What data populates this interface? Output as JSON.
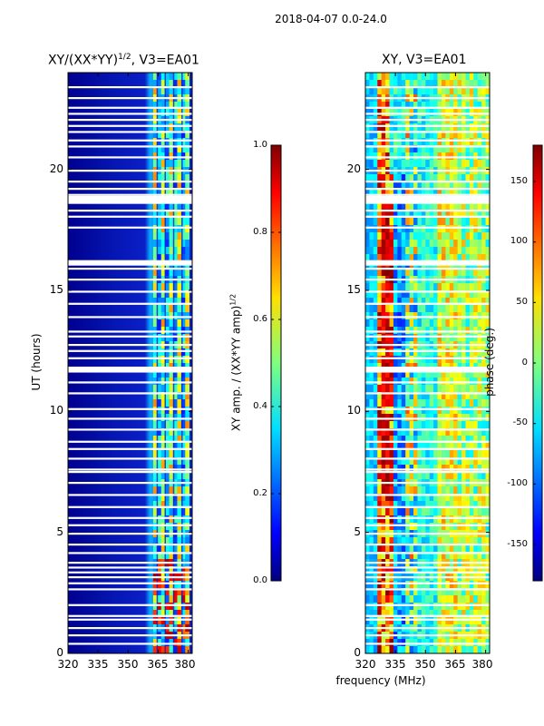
{
  "suptitle": "2018-04-07 0.0-24.0",
  "colors": {
    "bg_dark": "#00008f",
    "bg_blue": "#0a1fc8",
    "gap": "#ffffff",
    "frame": "#000000"
  },
  "chart_data": [
    {
      "type": "heatmap",
      "panel": "left",
      "title_main": "XY/(XX*YY)",
      "title_sup": "1/2",
      "title_tail": ", V3=EA01",
      "xlabel": "",
      "ylabel": "UT (hours)",
      "xlim": [
        320,
        382
      ],
      "ylim": [
        0,
        24
      ],
      "xticks": [
        320,
        335,
        350,
        365,
        380
      ],
      "yticks": [
        0,
        5,
        10,
        15,
        20
      ],
      "colormap": "jet",
      "colorbar": {
        "label_main": "XY amp. / (XX*YY amp)",
        "label_sup": "1/2",
        "range": [
          0.0,
          1.0
        ],
        "ticks": [
          "0.0",
          "0.2",
          "0.4",
          "0.6",
          "0.8",
          "1.0"
        ]
      }
    },
    {
      "type": "heatmap",
      "panel": "right",
      "title": "XY, V3=EA01",
      "xlabel": "frequency (MHz)",
      "ylabel": "",
      "xlim": [
        320,
        382
      ],
      "ylim": [
        0,
        24
      ],
      "xticks": [
        320,
        335,
        350,
        365,
        380
      ],
      "yticks": [
        0,
        5,
        10,
        15,
        20
      ],
      "colormap": "jet",
      "colorbar": {
        "label": "phase (deg.)",
        "range": [
          -180,
          180
        ],
        "ticks": [
          "-150",
          "-100",
          "-50",
          "0",
          "50",
          "100",
          "150"
        ]
      }
    }
  ],
  "gaps_ut_hours": [
    0.4,
    0.75,
    1.05,
    1.4,
    1.55,
    2.0,
    2.65,
    2.9,
    3.15,
    3.35,
    3.55,
    3.75,
    4.15,
    4.5,
    4.95,
    5.3,
    5.6,
    6.05,
    6.55,
    7.05,
    7.5,
    7.6,
    8.05,
    8.45,
    8.75,
    9.25,
    9.7,
    10.1,
    10.75,
    11.2,
    11.65,
    11.8,
    12.2,
    12.5,
    12.75,
    13.1,
    13.3,
    13.9,
    14.45,
    14.95,
    15.45,
    15.9,
    16.15,
    17.6,
    18.05,
    18.3,
    18.75,
    18.95,
    19.2,
    19.5,
    19.95,
    20.5,
    20.95,
    21.2,
    21.55,
    21.8,
    22.05,
    22.3,
    22.55,
    22.95,
    23.4
  ]
}
